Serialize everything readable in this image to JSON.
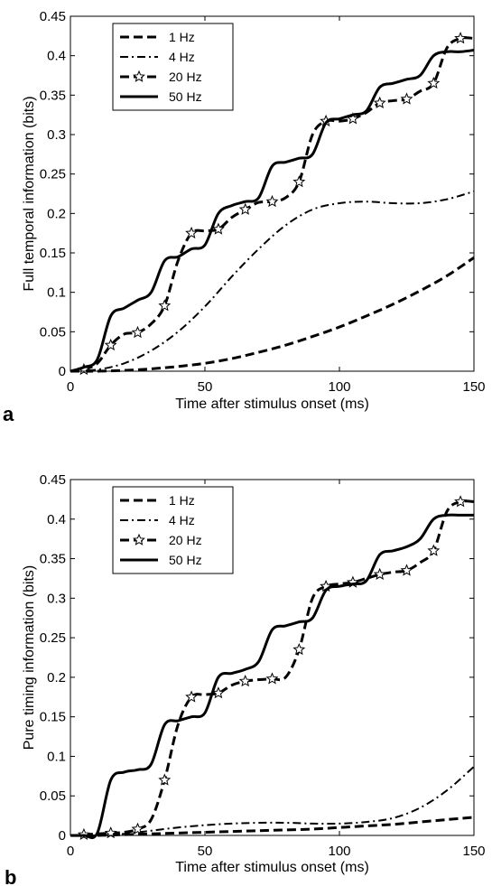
{
  "figure": {
    "series_names": [
      "1 Hz",
      "4 Hz",
      "20 Hz",
      "50 Hz"
    ],
    "line_color": "#000000"
  },
  "chart_data": [
    {
      "type": "line",
      "panel_label": "a",
      "title": "",
      "xlabel": "Time after stimulus onset (ms)",
      "ylabel": "Full temporal information (bits)",
      "xlim": [
        0,
        150
      ],
      "ylim": [
        0,
        0.45
      ],
      "xticks": [
        0,
        50,
        100,
        150
      ],
      "yticks": [
        0,
        0.05,
        0.1,
        0.15,
        0.2,
        0.25,
        0.3,
        0.35,
        0.4,
        0.45
      ],
      "legend_position": "top-left",
      "grid": false,
      "series": [
        {
          "name": "1 Hz",
          "style": "dashed",
          "x": [
            0,
            10,
            20,
            30,
            40,
            50,
            60,
            70,
            80,
            90,
            100,
            110,
            120,
            130,
            140,
            150
          ],
          "y": [
            0,
            0,
            0.001,
            0.003,
            0.006,
            0.01,
            0.016,
            0.024,
            0.033,
            0.044,
            0.056,
            0.07,
            0.085,
            0.102,
            0.121,
            0.144
          ]
        },
        {
          "name": "4 Hz",
          "style": "dashdot",
          "x": [
            0,
            10,
            20,
            30,
            40,
            50,
            60,
            70,
            80,
            90,
            100,
            110,
            120,
            130,
            140,
            150
          ],
          "y": [
            0,
            0.002,
            0.01,
            0.026,
            0.05,
            0.082,
            0.12,
            0.155,
            0.185,
            0.205,
            0.213,
            0.215,
            0.213,
            0.213,
            0.218,
            0.228
          ]
        },
        {
          "name": "20 Hz",
          "style": "dashed-star",
          "x": [
            5,
            10,
            15,
            20,
            25,
            30,
            35,
            40,
            45,
            50,
            55,
            60,
            65,
            70,
            75,
            80,
            85,
            90,
            95,
            100,
            105,
            110,
            115,
            120,
            125,
            130,
            135,
            140,
            145,
            150
          ],
          "y": [
            0.002,
            0.01,
            0.033,
            0.047,
            0.049,
            0.06,
            0.083,
            0.14,
            0.175,
            0.178,
            0.18,
            0.195,
            0.205,
            0.214,
            0.215,
            0.22,
            0.24,
            0.3,
            0.317,
            0.317,
            0.32,
            0.328,
            0.34,
            0.343,
            0.345,
            0.355,
            0.365,
            0.41,
            0.422,
            0.422
          ],
          "marker_x": [
            5,
            15,
            25,
            35,
            45,
            55,
            65,
            75,
            85,
            95,
            105,
            115,
            125,
            135,
            145
          ]
        },
        {
          "name": "50 Hz",
          "style": "solid",
          "x": [
            0,
            5,
            10,
            15,
            20,
            25,
            30,
            35,
            40,
            45,
            50,
            55,
            60,
            65,
            70,
            75,
            80,
            85,
            90,
            95,
            100,
            105,
            110,
            115,
            120,
            125,
            130,
            135,
            140,
            145,
            150
          ],
          "y": [
            0,
            0.005,
            0.015,
            0.07,
            0.08,
            0.09,
            0.1,
            0.14,
            0.145,
            0.155,
            0.16,
            0.2,
            0.21,
            0.215,
            0.22,
            0.26,
            0.265,
            0.27,
            0.275,
            0.315,
            0.32,
            0.325,
            0.33,
            0.36,
            0.365,
            0.37,
            0.375,
            0.4,
            0.405,
            0.405,
            0.407
          ]
        }
      ]
    },
    {
      "type": "line",
      "panel_label": "b",
      "title": "",
      "xlabel": "Time after stimulus onset (ms)",
      "ylabel": "Pure timing information (bits)",
      "xlim": [
        0,
        150
      ],
      "ylim": [
        0,
        0.45
      ],
      "xticks": [
        0,
        50,
        100,
        150
      ],
      "yticks": [
        0,
        0.05,
        0.1,
        0.15,
        0.2,
        0.25,
        0.3,
        0.35,
        0.4,
        0.45
      ],
      "legend_position": "top-left",
      "grid": false,
      "series": [
        {
          "name": "1 Hz",
          "style": "dashed",
          "x": [
            0,
            10,
            20,
            30,
            40,
            50,
            60,
            70,
            80,
            90,
            100,
            110,
            120,
            130,
            140,
            150
          ],
          "y": [
            0,
            0,
            0.001,
            0.002,
            0.003,
            0.004,
            0.005,
            0.006,
            0.007,
            0.008,
            0.01,
            0.012,
            0.014,
            0.017,
            0.02,
            0.023
          ]
        },
        {
          "name": "4 Hz",
          "style": "dashdot",
          "x": [
            0,
            10,
            20,
            30,
            40,
            50,
            60,
            70,
            80,
            90,
            100,
            110,
            120,
            130,
            140,
            150
          ],
          "y": [
            0,
            0,
            0.002,
            0.006,
            0.01,
            0.013,
            0.015,
            0.016,
            0.016,
            0.015,
            0.015,
            0.017,
            0.022,
            0.035,
            0.057,
            0.087
          ]
        },
        {
          "name": "20 Hz",
          "style": "dashed-star",
          "x": [
            5,
            10,
            15,
            20,
            25,
            30,
            35,
            40,
            45,
            50,
            55,
            60,
            65,
            70,
            75,
            80,
            85,
            90,
            95,
            100,
            105,
            110,
            115,
            120,
            125,
            130,
            135,
            140,
            145,
            150
          ],
          "y": [
            0.001,
            0.002,
            0.003,
            0.004,
            0.008,
            0.02,
            0.07,
            0.14,
            0.175,
            0.178,
            0.18,
            0.19,
            0.195,
            0.197,
            0.198,
            0.2,
            0.235,
            0.3,
            0.315,
            0.318,
            0.32,
            0.325,
            0.33,
            0.333,
            0.335,
            0.345,
            0.36,
            0.41,
            0.422,
            0.422
          ],
          "marker_x": [
            5,
            15,
            25,
            35,
            45,
            55,
            65,
            75,
            85,
            95,
            105,
            115,
            125,
            135,
            145
          ]
        },
        {
          "name": "50 Hz",
          "style": "solid",
          "x": [
            0,
            5,
            10,
            15,
            20,
            25,
            30,
            35,
            40,
            45,
            50,
            55,
            60,
            65,
            70,
            75,
            80,
            85,
            90,
            95,
            100,
            105,
            110,
            115,
            120,
            125,
            130,
            135,
            140,
            145,
            150
          ],
          "y": [
            0,
            0,
            0.003,
            0.07,
            0.08,
            0.083,
            0.09,
            0.14,
            0.145,
            0.15,
            0.155,
            0.2,
            0.205,
            0.21,
            0.22,
            0.26,
            0.265,
            0.27,
            0.275,
            0.31,
            0.315,
            0.318,
            0.322,
            0.355,
            0.36,
            0.365,
            0.375,
            0.4,
            0.405,
            0.405,
            0.405
          ]
        }
      ]
    }
  ]
}
